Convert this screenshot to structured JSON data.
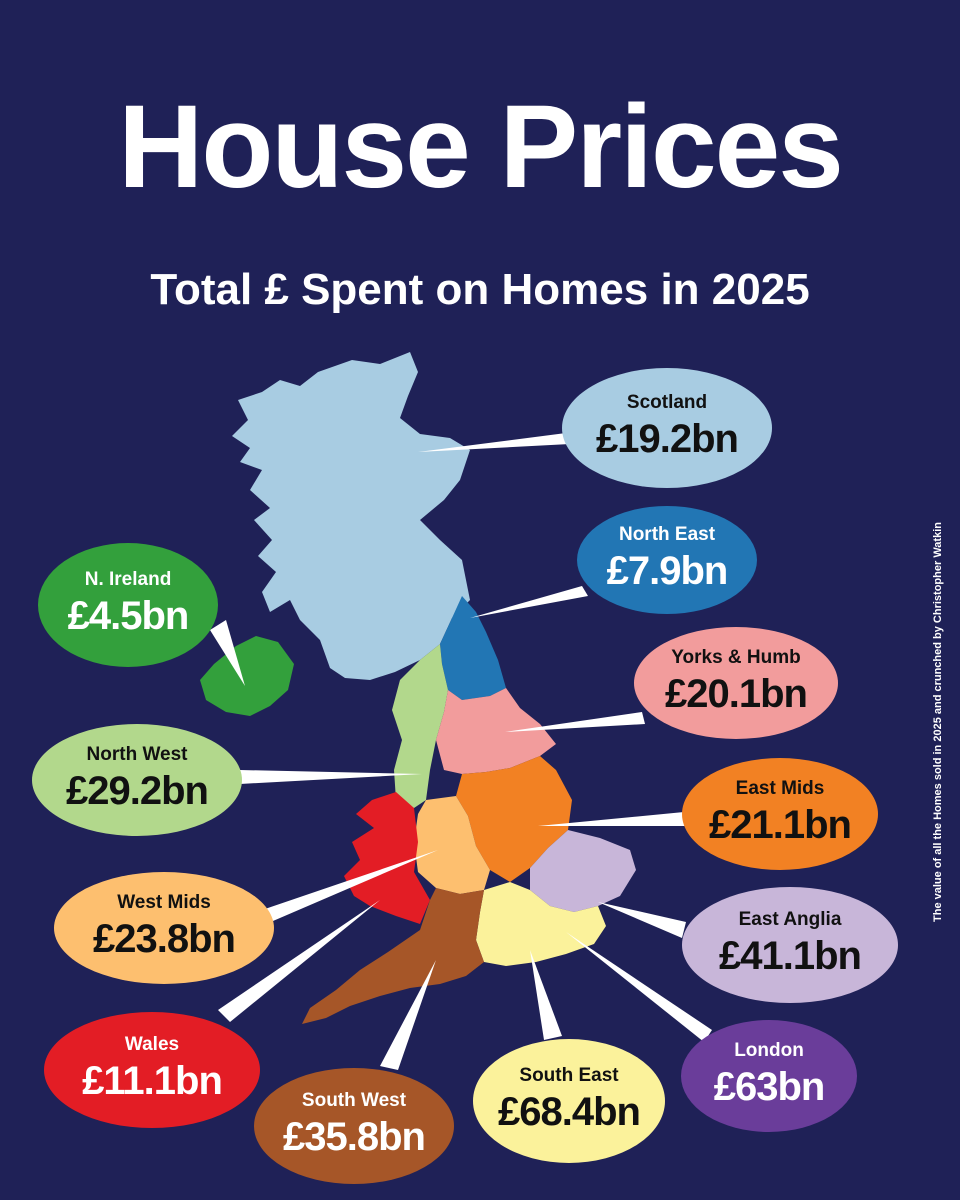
{
  "header": {
    "title": "House Prices",
    "subtitle": "Total £ Spent on Homes in 2025"
  },
  "credit": "The value of all the Homes sold in 2025 and crunched by Christopher Watkin",
  "regions": [
    {
      "key": "scotland",
      "name": "Scotland",
      "value": "£19.2bn",
      "color": "#a8cce2",
      "text_color": "#111111"
    },
    {
      "key": "north-east",
      "name": "North East",
      "value": "£7.9bn",
      "color": "#2276b4",
      "text_color": "#ffffff"
    },
    {
      "key": "yorks-humb",
      "name": "Yorks & Humb",
      "value": "£20.1bn",
      "color": "#f29c9c",
      "text_color": "#111111"
    },
    {
      "key": "east-mids",
      "name": "East Mids",
      "value": "£21.1bn",
      "color": "#f28123",
      "text_color": "#111111"
    },
    {
      "key": "east-anglia",
      "name": "East Anglia",
      "value": "£41.1bn",
      "color": "#c8b6d9",
      "text_color": "#111111"
    },
    {
      "key": "london",
      "name": "London",
      "value": "£63bn",
      "color": "#6a3d9a",
      "text_color": "#ffffff"
    },
    {
      "key": "south-east",
      "name": "South East",
      "value": "£68.4bn",
      "color": "#fbf29b",
      "text_color": "#111111"
    },
    {
      "key": "south-west",
      "name": "South West",
      "value": "£35.8bn",
      "color": "#a65628",
      "text_color": "#ffffff"
    },
    {
      "key": "wales",
      "name": "Wales",
      "value": "£11.1bn",
      "color": "#e31d25",
      "text_color": "#ffffff"
    },
    {
      "key": "west-mids",
      "name": "West Mids",
      "value": "£23.8bn",
      "color": "#fdbf6f",
      "text_color": "#111111"
    },
    {
      "key": "north-west",
      "name": "North West",
      "value": "£29.2bn",
      "color": "#b2d88c",
      "text_color": "#111111"
    },
    {
      "key": "n-ireland",
      "name": "N. Ireland",
      "value": "£4.5bn",
      "color": "#33a03c",
      "text_color": "#ffffff"
    }
  ]
}
